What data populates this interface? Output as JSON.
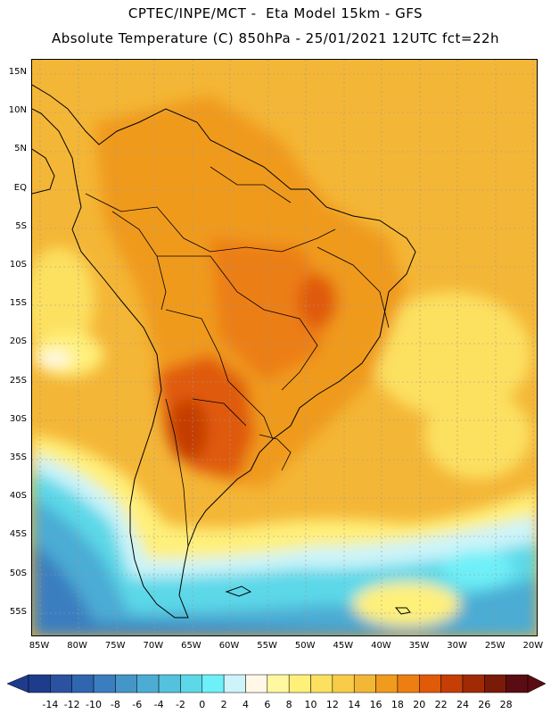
{
  "header": {
    "line1": "CPTEC/INPE/MCT -  Eta Model 15km - GFS",
    "line2": "Absolute Temperature (C) 850hPa - 25/01/2021 12UTC fct=22h"
  },
  "map": {
    "lat_labels": [
      "15N",
      "10N",
      "5N",
      "EQ",
      "5S",
      "10S",
      "15S",
      "20S",
      "25S",
      "30S",
      "35S",
      "40S",
      "45S",
      "50S",
      "55S"
    ],
    "lon_labels": [
      "85W",
      "80W",
      "75W",
      "70W",
      "65W",
      "60W",
      "55W",
      "50W",
      "45W",
      "40W",
      "35W",
      "30W",
      "25W",
      "20W"
    ]
  },
  "colorbar": {
    "labels": [
      "-14",
      "-12",
      "-10",
      "-8",
      "-6",
      "-4",
      "-2",
      "0",
      "2",
      "4",
      "6",
      "8",
      "10",
      "12",
      "14",
      "16",
      "18",
      "20",
      "22",
      "24",
      "26",
      "28"
    ],
    "colors": [
      "#1e3c8c",
      "#2a52a0",
      "#3066b0",
      "#3a7ec0",
      "#4496c8",
      "#4cacd4",
      "#54c2dc",
      "#5cd8e8",
      "#6ef0f8",
      "#ccf4fa",
      "#fff8e6",
      "#fff8a0",
      "#fff07a",
      "#fce060",
      "#f8cc48",
      "#f4b636",
      "#f09a1e",
      "#ec7e12",
      "#e05a08",
      "#c43e06",
      "#a02a06",
      "#7a1a08",
      "#5a0c12"
    ]
  },
  "palette": {
    "ocean_warm": "#f4b636",
    "land_hot": "#e05a08",
    "cold_water": "#5cd8e8",
    "deep_cold": "#3a7ec0"
  }
}
